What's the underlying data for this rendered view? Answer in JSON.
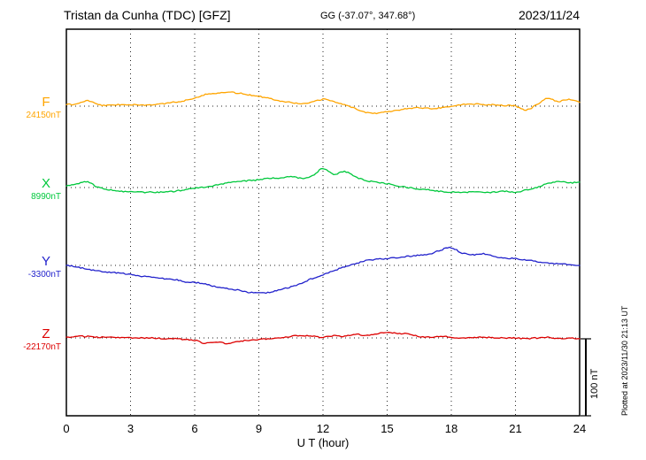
{
  "header": {
    "title": "Tristan da Cunha (TDC)  [GFZ]",
    "coords": "GG (-37.07°, 347.68°)",
    "date": "2023/11/24"
  },
  "x_axis": {
    "label": "U T (hour)",
    "ticks": [
      "0",
      "3",
      "6",
      "9",
      "12",
      "15",
      "18",
      "21",
      "24"
    ]
  },
  "scale_bar": {
    "label": "100 nT",
    "nT": 100
  },
  "plotted_note": "Plotted at 2023/11/30 21:13 UT",
  "chart_data": {
    "type": "line",
    "title": "Magnetogram Tristan da Cunha (TDC) [GFZ] 2023/11/24",
    "xlabel": "U T (hour)",
    "x_unit": "hour UT",
    "x_start": 0,
    "x_end": 24,
    "x_step_hours": 0.5,
    "x_ticks": [
      0,
      3,
      6,
      9,
      12,
      15,
      18,
      21,
      24
    ],
    "grid": "dotted vertical every 3 h, dotted baseline per channel",
    "legend_position": "left margin channel labels",
    "scale_bar_nT": 100,
    "series": [
      {
        "name": "F",
        "baseline_label": "24150nT",
        "baseline_nT": 24150,
        "color": "#FFA500",
        "offsets_nT": [
          2,
          3,
          7,
          2,
          1,
          2,
          2,
          1,
          2,
          3,
          5,
          7,
          11,
          15,
          17,
          18,
          17,
          15,
          13,
          10,
          7,
          5,
          3,
          5,
          9,
          6,
          2,
          -3,
          -8,
          -9,
          -7,
          -5,
          -3,
          -2,
          -3,
          -2,
          0,
          2,
          3,
          2,
          2,
          1,
          0,
          -5,
          2,
          10,
          6,
          9,
          5
        ]
      },
      {
        "name": "X",
        "baseline_label": "8990nT",
        "baseline_nT": 8990,
        "color": "#00C83C",
        "offsets_nT": [
          2,
          5,
          7,
          0,
          -3,
          -5,
          -5,
          -6,
          -6,
          -6,
          -5,
          -3,
          -1,
          1,
          3,
          6,
          8,
          9,
          10,
          12,
          12,
          14,
          12,
          15,
          25,
          17,
          21,
          14,
          9,
          7,
          5,
          2,
          0,
          -2,
          -3,
          -5,
          -6,
          -6,
          -6,
          -6,
          -6,
          -5,
          -6,
          -3,
          0,
          5,
          8,
          6,
          7
        ]
      },
      {
        "name": "Y",
        "baseline_label": "-3300nT",
        "baseline_nT": -3300,
        "color": "#2222CC",
        "offsets_nT": [
          0,
          -2,
          -5,
          -7,
          -9,
          -10,
          -12,
          -14,
          -15,
          -17,
          -18,
          -21,
          -22,
          -24,
          -28,
          -30,
          -32,
          -35,
          -36,
          -35,
          -31,
          -28,
          -23,
          -17,
          -12,
          -7,
          -2,
          2,
          6,
          8,
          9,
          10,
          12,
          13,
          15,
          20,
          23,
          16,
          14,
          15,
          12,
          9,
          9,
          7,
          5,
          3,
          2,
          1,
          0
        ]
      },
      {
        "name": "Z",
        "baseline_label": "-22170nT",
        "baseline_nT": -22170,
        "color": "#DD0000",
        "offsets_nT": [
          1,
          2,
          2,
          1,
          1,
          0,
          0,
          0,
          0,
          -1,
          -1,
          -2,
          -3,
          -7,
          -5,
          -7,
          -5,
          -3,
          -2,
          -1,
          0,
          2,
          3,
          2,
          1,
          3,
          2,
          5,
          3,
          5,
          7,
          6,
          5,
          2,
          1,
          2,
          1,
          0,
          0,
          1,
          0,
          0,
          0,
          -1,
          0,
          1,
          -1,
          0,
          -1
        ]
      }
    ]
  }
}
